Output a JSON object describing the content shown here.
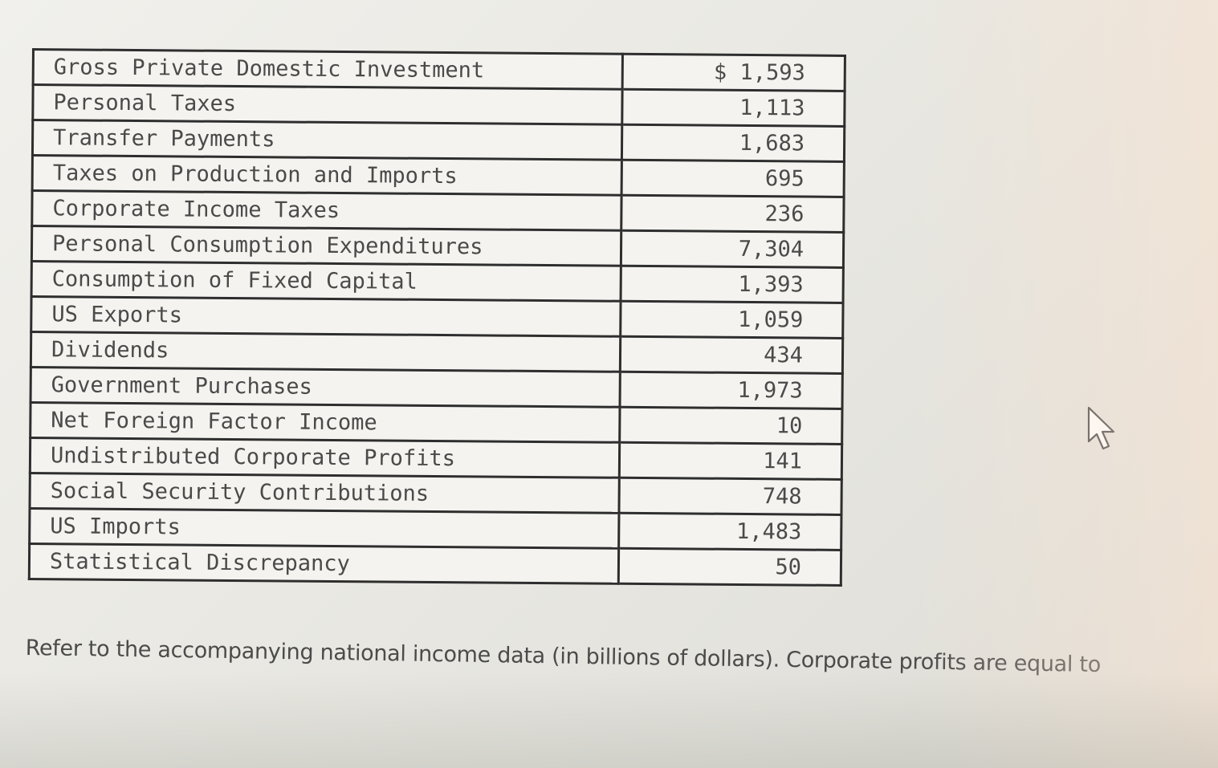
{
  "table": {
    "rows": [
      {
        "label": "Gross Private Domestic Investment",
        "value": "$ 1,593"
      },
      {
        "label": "Personal Taxes",
        "value": "1,113"
      },
      {
        "label": "Transfer Payments",
        "value": "1,683"
      },
      {
        "label": "Taxes on Production and Imports",
        "value": "695"
      },
      {
        "label": "Corporate Income Taxes",
        "value": "236"
      },
      {
        "label": "Personal Consumption Expenditures",
        "value": "7,304"
      },
      {
        "label": "Consumption of Fixed Capital",
        "value": "1,393"
      },
      {
        "label": "US Exports",
        "value": "1,059"
      },
      {
        "label": "Dividends",
        "value": "434"
      },
      {
        "label": "Government Purchases",
        "value": "1,973"
      },
      {
        "label": "Net Foreign Factor Income",
        "value": "10"
      },
      {
        "label": "Undistributed Corporate Profits",
        "value": "141"
      },
      {
        "label": "Social Security Contributions",
        "value": "748"
      },
      {
        "label": "US Imports",
        "value": "1,483"
      },
      {
        "label": "Statistical Discrepancy",
        "value": "50"
      }
    ]
  },
  "question": {
    "text": "Refer to the accompanying national income data (in billions of dollars). Corporate profits are equal to"
  },
  "icons": {
    "cursor": "mouse-pointer-icon"
  },
  "colors": {
    "table_border": "#2e2e2e",
    "table_text": "#4a4a4a",
    "caption_text": "#4b4b4b"
  }
}
